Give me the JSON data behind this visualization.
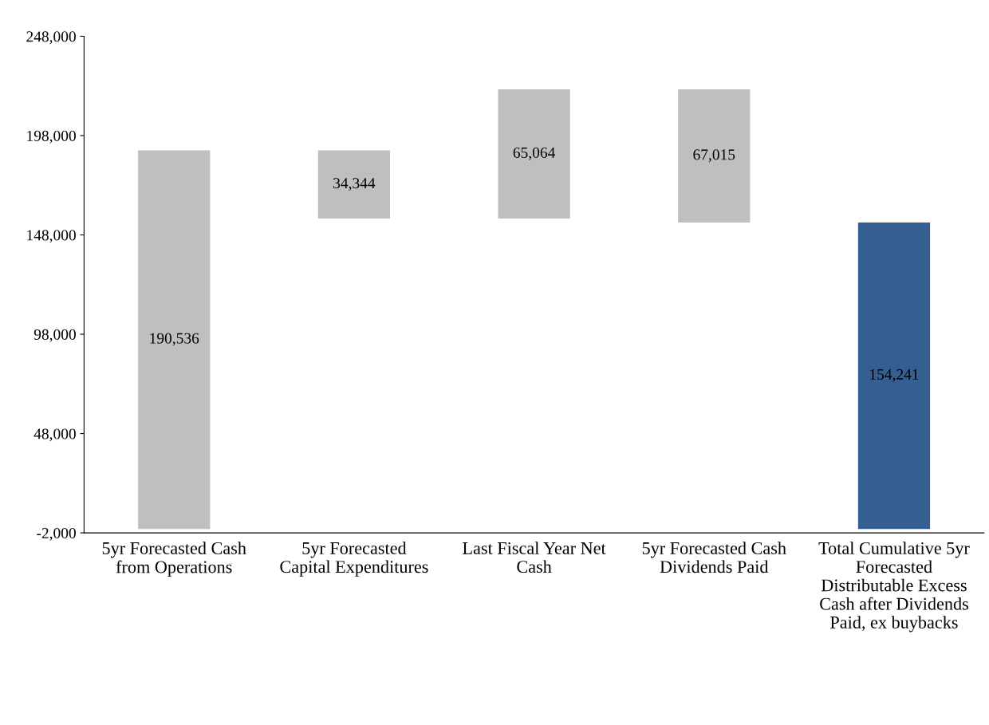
{
  "chart_data": {
    "type": "bar",
    "categories": [
      "5yr Forecasted Cash\nfrom Operations",
      "5yr Forecasted\nCapital Expenditures",
      "Last Fiscal Year Net\nCash",
      "5yr Forecasted Cash\nDividends Paid",
      "Total Cumulative 5yr\nForecasted\nDistributable Excess\nCash after Dividends\nPaid, ex buybacks"
    ],
    "values": [
      190536,
      34344,
      65064,
      67015,
      154241
    ],
    "base": [
      0,
      156192,
      156192,
      154241,
      0
    ],
    "colors": [
      "#bfbfbf",
      "#bfbfbf",
      "#bfbfbf",
      "#bfbfbf",
      "#355e91"
    ],
    "value_labels": [
      "190,536",
      "34,344",
      "65,064",
      "67,015",
      "154,241"
    ],
    "ylim": [
      -2000,
      248000
    ],
    "yticks": [
      {
        "value": -2000,
        "label": "-2,000"
      },
      {
        "value": 48000,
        "label": "48,000"
      },
      {
        "value": 98000,
        "label": "98,000"
      },
      {
        "value": 148000,
        "label": "148,000"
      },
      {
        "value": 198000,
        "label": "198,000"
      },
      {
        "value": 248000,
        "label": "248,000"
      }
    ],
    "grid": false,
    "legend": false
  }
}
